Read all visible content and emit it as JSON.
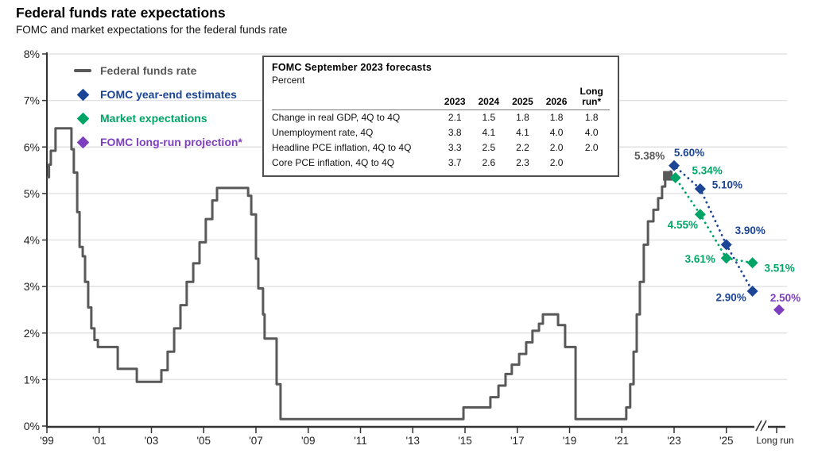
{
  "header": {
    "title": "Federal funds rate expectations",
    "subtitle": "FOMC and market expectations for the federal funds rate"
  },
  "colors": {
    "line_gray": "#595959",
    "fomc_blue": "#1c4596",
    "market_green": "#00a466",
    "longrun_purple": "#7d3fbf",
    "axis": "#333333",
    "gridline": "#e2e2e2"
  },
  "legend": {
    "items": [
      {
        "id": "federal-funds-rate",
        "label": "Federal funds rate",
        "color": "#595959",
        "marker": "line"
      },
      {
        "id": "fomc-year-end-estimates",
        "label": "FOMC year-end estimates",
        "color": "#1c4596",
        "marker": "diamond"
      },
      {
        "id": "market-expectations",
        "label": "Market expectations",
        "color": "#00a466",
        "marker": "diamond"
      },
      {
        "id": "fomc-long-run-projection",
        "label": "FOMC long-run projection*",
        "color": "#7d3fbf",
        "marker": "diamond"
      }
    ]
  },
  "forecast_table": {
    "title": "FOMC September 2023 forecasts",
    "unit": "Percent",
    "columns": [
      "2023",
      "2024",
      "2025",
      "2026",
      "Long run*"
    ],
    "rows": [
      {
        "label": "Change in real GDP, 4Q to 4Q",
        "values": [
          "2.1",
          "1.5",
          "1.8",
          "1.8",
          "1.8"
        ]
      },
      {
        "label": "Unemployment rate, 4Q",
        "values": [
          "3.8",
          "4.1",
          "4.1",
          "4.0",
          "4.0"
        ]
      },
      {
        "label": "Headline PCE inflation, 4Q to 4Q",
        "values": [
          "3.3",
          "2.5",
          "2.2",
          "2.0",
          "2.0"
        ]
      },
      {
        "label": "Core PCE inflation, 4Q to 4Q",
        "values": [
          "3.7",
          "2.6",
          "2.3",
          "2.0",
          ""
        ]
      }
    ]
  },
  "chart_data": {
    "type": "line",
    "title": "Federal funds rate expectations",
    "ylabel": "Percent",
    "ylim": [
      0,
      8
    ],
    "y_tick_labels": [
      "0%",
      "1%",
      "2%",
      "3%",
      "4%",
      "5%",
      "6%",
      "7%",
      "8%"
    ],
    "x_tick_years": [
      1999,
      2001,
      2003,
      2005,
      2007,
      2009,
      2011,
      2013,
      2015,
      2017,
      2019,
      2021,
      2023,
      2025
    ],
    "x_tick_labels": [
      "'99",
      "'01",
      "'03",
      "'05",
      "'07",
      "'09",
      "'11",
      "'13",
      "'15",
      "'17",
      "'19",
      "'21",
      "'23",
      "'25"
    ],
    "long_run_label": "Long run",
    "grid": true,
    "legend_position": "top-left",
    "series": [
      {
        "name": "Federal funds rate",
        "type": "step",
        "color": "#595959",
        "end_year": 2022.85,
        "end_marker": {
          "x": 2022.76,
          "value": 5.38,
          "label": "5.38%",
          "shape": "square",
          "label_dx": -23,
          "label_dy": -25
        },
        "points": [
          [
            1999.0,
            5.35
          ],
          [
            1999.08,
            5.62
          ],
          [
            1999.15,
            5.92
          ],
          [
            1999.33,
            6.4
          ],
          [
            1999.94,
            5.95
          ],
          [
            2000.03,
            5.45
          ],
          [
            2000.16,
            4.6
          ],
          [
            2000.25,
            3.85
          ],
          [
            2000.37,
            3.65
          ],
          [
            2000.46,
            3.1
          ],
          [
            2000.58,
            2.55
          ],
          [
            2000.7,
            2.1
          ],
          [
            2000.82,
            1.85
          ],
          [
            2000.95,
            1.7
          ],
          [
            2001.71,
            1.23
          ],
          [
            2002.44,
            0.95
          ],
          [
            2003.38,
            1.2
          ],
          [
            2003.62,
            1.6
          ],
          [
            2003.87,
            2.1
          ],
          [
            2004.11,
            2.6
          ],
          [
            2004.35,
            3.1
          ],
          [
            2004.6,
            3.5
          ],
          [
            2004.84,
            3.95
          ],
          [
            2005.08,
            4.45
          ],
          [
            2005.33,
            4.85
          ],
          [
            2005.51,
            5.12
          ],
          [
            2006.7,
            4.95
          ],
          [
            2006.82,
            4.55
          ],
          [
            2007.0,
            3.6
          ],
          [
            2007.09,
            2.96
          ],
          [
            2007.27,
            2.4
          ],
          [
            2007.33,
            1.88
          ],
          [
            2007.79,
            0.9
          ],
          [
            2007.94,
            0.15
          ],
          [
            2014.94,
            0.4
          ],
          [
            2015.97,
            0.62
          ],
          [
            2016.28,
            0.87
          ],
          [
            2016.55,
            1.12
          ],
          [
            2016.79,
            1.32
          ],
          [
            2017.07,
            1.55
          ],
          [
            2017.34,
            1.8
          ],
          [
            2017.58,
            2.05
          ],
          [
            2017.83,
            2.2
          ],
          [
            2017.98,
            2.4
          ],
          [
            2018.56,
            2.17
          ],
          [
            2018.83,
            1.7
          ],
          [
            2019.23,
            0.15
          ],
          [
            2021.17,
            0.4
          ],
          [
            2021.32,
            0.9
          ],
          [
            2021.45,
            1.6
          ],
          [
            2021.57,
            2.4
          ],
          [
            2021.69,
            3.1
          ],
          [
            2021.84,
            3.9
          ],
          [
            2022.0,
            4.4
          ],
          [
            2022.21,
            4.65
          ],
          [
            2022.39,
            4.9
          ],
          [
            2022.54,
            5.15
          ],
          [
            2022.66,
            5.38
          ]
        ]
      },
      {
        "name": "FOMC year-end estimates",
        "type": "scatter-dotted",
        "color": "#1c4596",
        "connect_from_end_marker": true,
        "points": [
          {
            "x": 2023,
            "value": 5.6,
            "label": "5.60%",
            "label_dx": 19,
            "label_dy": -16
          },
          {
            "x": 2024,
            "value": 5.1,
            "label": "5.10%",
            "label_dx": 34,
            "label_dy": -5
          },
          {
            "x": 2025,
            "value": 3.9,
            "label": "3.90%",
            "label_dx": 30,
            "label_dy": -18
          },
          {
            "x": 2026,
            "value": 2.9,
            "label": "2.90%",
            "label_dx": -27,
            "label_dy": 8
          }
        ]
      },
      {
        "name": "Market expectations",
        "type": "scatter-dotted",
        "color": "#00a466",
        "connect_from_end_marker": true,
        "points": [
          {
            "x": 2023.05,
            "value": 5.34,
            "label": "5.34%",
            "label_dx": 40,
            "label_dy": -9
          },
          {
            "x": 2024,
            "value": 4.55,
            "label": "4.55%",
            "label_dx": -22,
            "label_dy": 13
          },
          {
            "x": 2025,
            "value": 3.61,
            "label": "3.61%",
            "label_dx": -33,
            "label_dy": 1
          },
          {
            "x": 2026,
            "value": 3.51,
            "label": "3.51%",
            "label_dx": 34,
            "label_dy": 7
          }
        ]
      },
      {
        "name": "FOMC long-run projection",
        "type": "scatter",
        "color": "#7d3fbf",
        "points": [
          {
            "x": "long-run",
            "value": 2.5,
            "label": "2.50%",
            "label_dx": 8,
            "label_dy": -15
          }
        ]
      }
    ]
  }
}
